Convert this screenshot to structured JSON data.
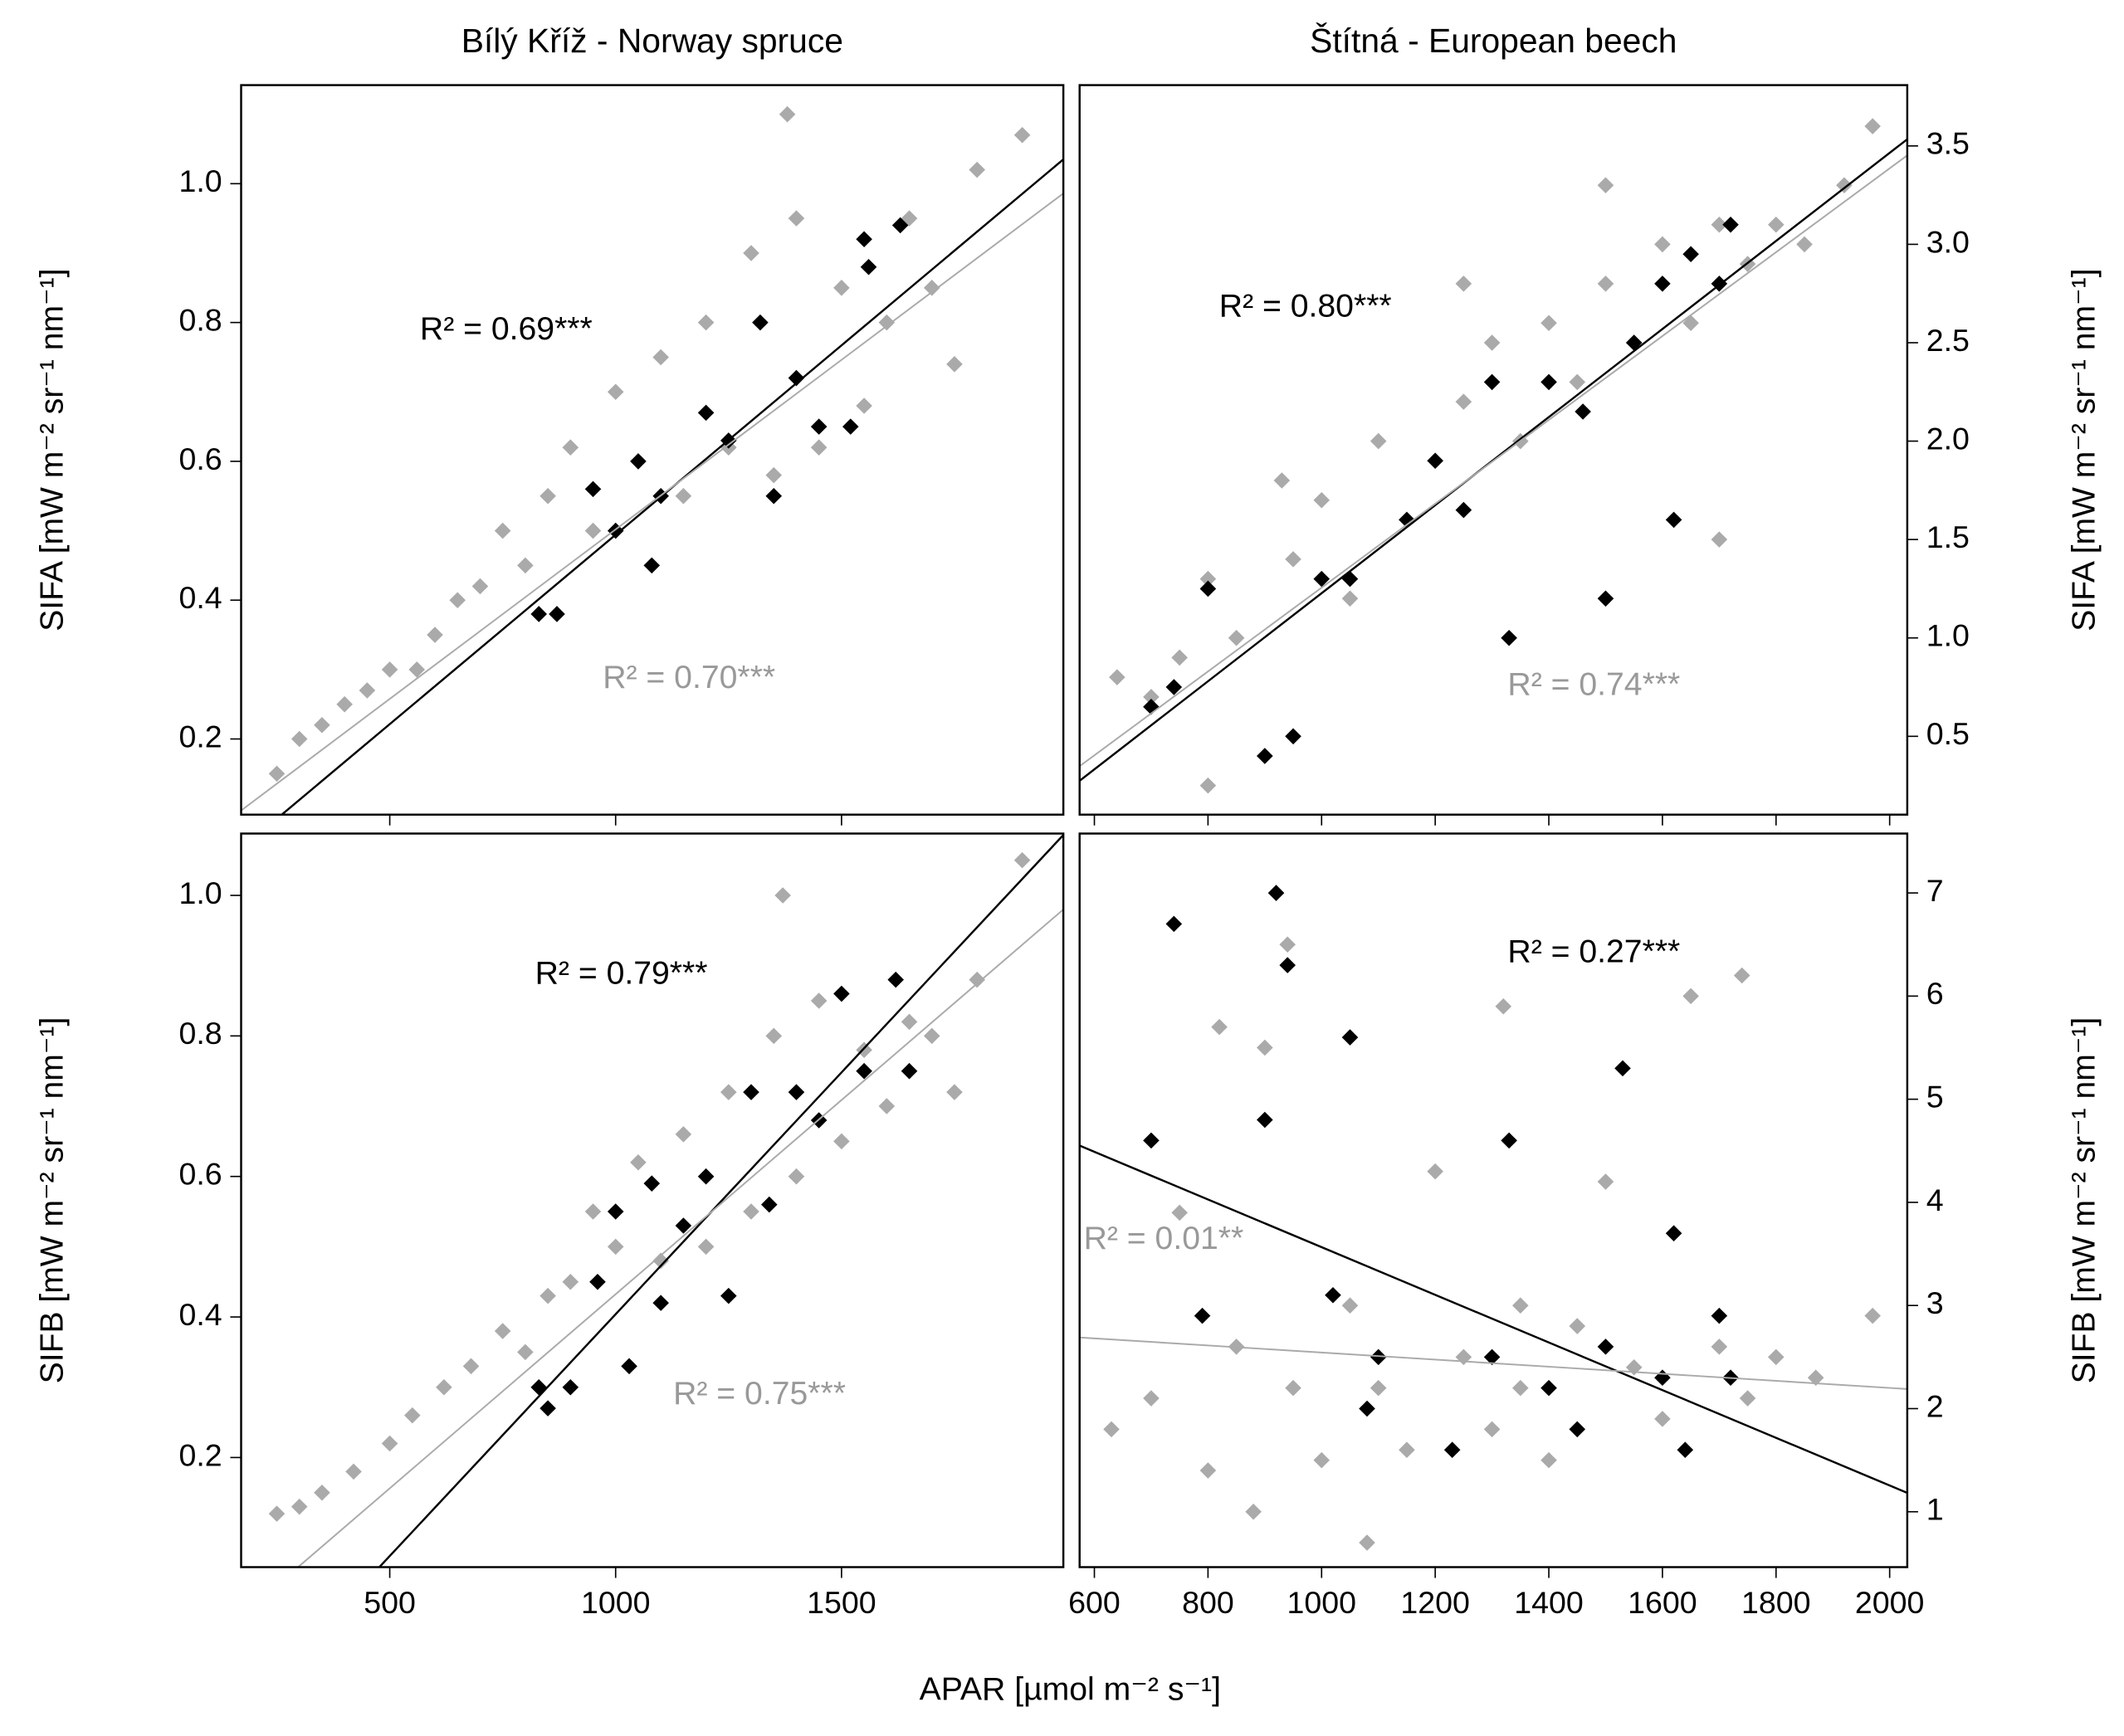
{
  "chart_data": [
    {
      "type": "scatter",
      "title": "Bílý Kříž - Norway spruce",
      "ylabel": "SIFA [mW m⁻² sr⁻¹ nm⁻¹]",
      "y_axis_side": "left",
      "xlim": [
        171,
        1991
      ],
      "ylim": [
        0.091,
        1.142
      ],
      "xticks": [
        500,
        1000,
        1500
      ],
      "yticks": [
        0.2,
        0.4,
        0.6,
        0.8,
        {
          "value": 1,
          "label": "1.0"
        }
      ],
      "series": [
        {
          "color": "#aaaaaa",
          "x": [
            250,
            300,
            350,
            400,
            450,
            500,
            560,
            600,
            650,
            700,
            750,
            800,
            850,
            900,
            950,
            1000,
            1050,
            1100,
            1150,
            1200,
            1250,
            1300,
            1350,
            1400,
            1450,
            1500,
            1550,
            1600,
            1650,
            1700,
            1800,
            1900,
            1380,
            1750
          ],
          "values": [
            0.15,
            0.2,
            0.22,
            0.25,
            0.27,
            0.3,
            0.3,
            0.35,
            0.4,
            0.42,
            0.5,
            0.45,
            0.55,
            0.62,
            0.5,
            0.7,
            0.6,
            0.75,
            0.55,
            0.8,
            0.62,
            0.9,
            0.58,
            0.95,
            0.62,
            0.85,
            0.68,
            0.8,
            0.95,
            0.85,
            1.02,
            1.07,
            1.1,
            0.74
          ]
        },
        {
          "color": "#000000",
          "x": [
            830,
            870,
            950,
            1000,
            1050,
            1080,
            1100,
            1200,
            1250,
            1320,
            1350,
            1400,
            1450,
            1520,
            1550,
            1630,
            1560
          ],
          "values": [
            0.38,
            0.38,
            0.56,
            0.5,
            0.6,
            0.45,
            0.55,
            0.67,
            0.63,
            0.8,
            0.55,
            0.72,
            0.65,
            0.65,
            0.92,
            0.94,
            0.88
          ]
        }
      ],
      "fits": [
        {
          "color": "#000000",
          "x": [
            261,
            1991
          ],
          "values": [
            0.091,
            1.035
          ]
        },
        {
          "color": "#aaaaaa",
          "x": [
            171,
            1991
          ],
          "values": [
            0.097,
            0.986
          ]
        }
      ],
      "annotations": [
        {
          "text": "R² = 0.69***",
          "color": "#000000"
        },
        {
          "text": "R² = 0.70***",
          "color": "#999999"
        }
      ]
    },
    {
      "type": "scatter",
      "title": "Štítná - European beech",
      "ylabel": "SIFA [mW m⁻² sr⁻¹ nm⁻¹]",
      "y_axis_side": "right",
      "xlim": [
        574,
        2031
      ],
      "ylim": [
        0.102,
        3.809
      ],
      "xticks": [
        600,
        800,
        1000,
        1200,
        1400,
        1600,
        1800,
        2000
      ],
      "yticks": [
        0.5,
        {
          "value": 1,
          "label": "1.0"
        },
        1.5,
        {
          "value": 2,
          "label": "2.0"
        },
        2.5,
        {
          "value": 3,
          "label": "3.0"
        },
        3.5
      ],
      "series": [
        {
          "color": "#aaaaaa",
          "x": [
            640,
            700,
            750,
            800,
            800,
            850,
            900,
            930,
            950,
            1000,
            1050,
            1100,
            1150,
            1200,
            1250,
            1300,
            1350,
            1400,
            1450,
            1500,
            1550,
            1600,
            1650,
            1700,
            1750,
            1800,
            1850,
            1920,
            1970,
            1250,
            1700,
            1500
          ],
          "values": [
            0.8,
            0.7,
            0.9,
            1.3,
            0.25,
            1.0,
            0.4,
            1.8,
            1.4,
            1.7,
            1.2,
            2.0,
            1.6,
            1.9,
            2.2,
            2.5,
            2.0,
            2.6,
            2.3,
            2.8,
            2.5,
            3.0,
            2.6,
            3.1,
            2.9,
            3.1,
            3.0,
            3.3,
            3.6,
            2.8,
            1.5,
            3.3
          ]
        },
        {
          "color": "#000000",
          "x": [
            700,
            740,
            800,
            900,
            950,
            1000,
            1050,
            1150,
            1200,
            1250,
            1300,
            1330,
            1400,
            1460,
            1500,
            1550,
            1600,
            1620,
            1700,
            1720,
            1650
          ],
          "values": [
            0.65,
            0.75,
            1.25,
            0.4,
            0.5,
            1.3,
            1.3,
            1.6,
            1.9,
            1.65,
            2.3,
            1.0,
            2.3,
            2.15,
            1.2,
            2.5,
            2.8,
            1.6,
            2.8,
            3.1,
            2.95
          ]
        }
      ],
      "fits": [
        {
          "color": "#000000",
          "x": [
            574,
            2031
          ],
          "values": [
            0.274,
            3.534
          ]
        },
        {
          "color": "#aaaaaa",
          "x": [
            574,
            2031
          ],
          "values": [
            0.348,
            3.452
          ]
        }
      ],
      "annotations": [
        {
          "text": "R² = 0.80***",
          "color": "#000000"
        },
        {
          "text": "R² = 0.74***",
          "color": "#999999"
        }
      ]
    },
    {
      "type": "scatter",
      "ylabel": "SIFB [mW m⁻² sr⁻¹ nm⁻¹]",
      "y_axis_side": "left",
      "xlabel": "APAR [µmol m⁻² s⁻¹]",
      "xlim": [
        171,
        1991
      ],
      "ylim": [
        0.044,
        1.088
      ],
      "xticks": [
        500,
        1000,
        1500
      ],
      "yticks": [
        0.2,
        0.4,
        0.6,
        0.8,
        {
          "value": 1,
          "label": "1.0"
        }
      ],
      "series": [
        {
          "color": "#aaaaaa",
          "x": [
            250,
            300,
            350,
            420,
            500,
            550,
            620,
            680,
            750,
            800,
            850,
            900,
            950,
            1000,
            1050,
            1100,
            1150,
            1200,
            1250,
            1300,
            1350,
            1400,
            1450,
            1500,
            1550,
            1600,
            1650,
            1700,
            1800,
            1900,
            1370,
            1750
          ],
          "values": [
            0.12,
            0.13,
            0.15,
            0.18,
            0.22,
            0.26,
            0.3,
            0.33,
            0.38,
            0.35,
            0.43,
            0.45,
            0.55,
            0.5,
            0.62,
            0.48,
            0.66,
            0.5,
            0.72,
            0.55,
            0.8,
            0.6,
            0.85,
            0.65,
            0.78,
            0.7,
            0.82,
            0.8,
            0.88,
            1.05,
            1.0,
            0.72
          ]
        },
        {
          "color": "#000000",
          "x": [
            830,
            850,
            900,
            960,
            1000,
            1030,
            1080,
            1100,
            1150,
            1200,
            1250,
            1300,
            1340,
            1400,
            1450,
            1500,
            1550,
            1620,
            1650
          ],
          "values": [
            0.3,
            0.27,
            0.3,
            0.45,
            0.55,
            0.33,
            0.59,
            0.42,
            0.53,
            0.6,
            0.43,
            0.72,
            0.56,
            0.72,
            0.68,
            0.86,
            0.75,
            0.88,
            0.75
          ]
        }
      ],
      "fits": [
        {
          "color": "#000000",
          "x": [
            477,
            1991
          ],
          "values": [
            0.044,
            1.086
          ]
        },
        {
          "color": "#aaaaaa",
          "x": [
            297,
            1991
          ],
          "values": [
            0.044,
            0.98
          ]
        }
      ],
      "annotations": [
        {
          "text": "R² = 0.79***",
          "color": "#000000"
        },
        {
          "text": "R² = 0.75***",
          "color": "#999999"
        }
      ]
    },
    {
      "type": "scatter",
      "ylabel": "SIFB [mW m⁻² sr⁻¹ nm⁻¹]",
      "y_axis_side": "right",
      "xlim": [
        574,
        2031
      ],
      "ylim": [
        0.463,
        7.576
      ],
      "xticks": [
        600,
        800,
        1000,
        1200,
        1400,
        1600,
        1800,
        2000
      ],
      "yticks": [
        1,
        2,
        3,
        4,
        5,
        6,
        7
      ],
      "series": [
        {
          "color": "#aaaaaa",
          "x": [
            630,
            700,
            750,
            800,
            820,
            850,
            880,
            900,
            920,
            940,
            950,
            1000,
            1050,
            1100,
            1150,
            1200,
            1250,
            1300,
            1320,
            1350,
            1400,
            1450,
            1500,
            1550,
            1600,
            1650,
            1700,
            1740,
            1800,
            1870,
            1970,
            1080,
            1350,
            1750
          ],
          "values": [
            1.8,
            2.1,
            3.9,
            1.4,
            5.7,
            2.6,
            1.0,
            5.5,
            7.0,
            6.5,
            2.2,
            1.5,
            3.0,
            2.2,
            1.6,
            4.3,
            2.5,
            1.8,
            5.9,
            2.2,
            1.5,
            2.8,
            4.2,
            2.4,
            1.9,
            6.0,
            2.6,
            6.2,
            2.5,
            2.3,
            2.9,
            0.7,
            3.0,
            2.1
          ]
        },
        {
          "color": "#000000",
          "x": [
            700,
            740,
            790,
            900,
            920,
            940,
            1020,
            1050,
            1080,
            1100,
            1230,
            1300,
            1330,
            1400,
            1450,
            1500,
            1530,
            1600,
            1620,
            1640,
            1700,
            1720
          ],
          "values": [
            4.6,
            6.7,
            2.9,
            4.8,
            7.0,
            6.3,
            3.1,
            5.6,
            2.0,
            2.5,
            1.6,
            2.5,
            4.6,
            2.2,
            1.8,
            2.6,
            5.3,
            2.3,
            3.7,
            1.6,
            2.9,
            2.3
          ]
        }
      ],
      "fits": [
        {
          "color": "#000000",
          "x": [
            574,
            2031
          ],
          "values": [
            4.55,
            1.183
          ]
        },
        {
          "color": "#aaaaaa",
          "x": [
            574,
            2031
          ],
          "values": [
            2.69,
            2.19
          ]
        }
      ],
      "annotations": [
        {
          "text": "R² = 0.27***",
          "color": "#000000"
        },
        {
          "text": "R² = 0.01**",
          "color": "#999999"
        }
      ]
    }
  ]
}
